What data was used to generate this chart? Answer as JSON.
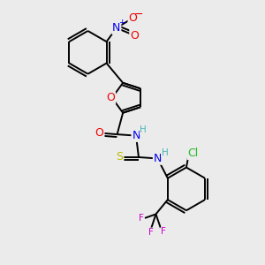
{
  "bg_color": "#ebebeb",
  "atom_colors": {
    "C": "#000000",
    "H": "#4ab5b5",
    "N_plus": "#0000ee",
    "N": "#0000ee",
    "O": "#ee0000",
    "S": "#bbbb00",
    "Cl": "#22bb22",
    "F": "#cc00cc"
  },
  "lw": 1.4,
  "fs": 9.0,
  "fs_small": 7.5
}
